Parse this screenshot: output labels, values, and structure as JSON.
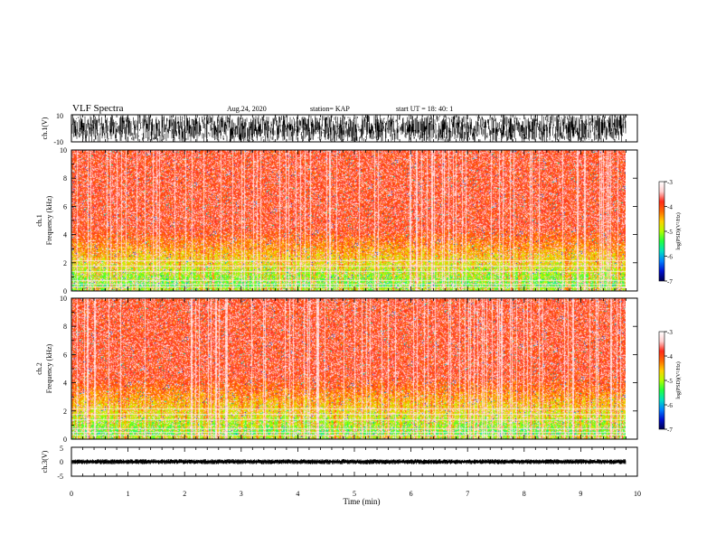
{
  "header": {
    "title": "VLF Spectra",
    "date": "Aug.24, 2020",
    "station": "station= KAP",
    "start": "start  UT  =   18: 40: 1"
  },
  "colorbar": {
    "label": "log(PSD)(V²/Hz)",
    "ticks": [
      "-3",
      "-4",
      "-5",
      "-6",
      "-7"
    ],
    "colors": [
      "#ffffff",
      "#ffd0d0",
      "#ff2a1a",
      "#ff6a00",
      "#ffd000",
      "#b0ff00",
      "#20ff40",
      "#00e0c0",
      "#0080ff",
      "#0010d0",
      "#000050"
    ]
  },
  "chart_data": [
    {
      "type": "line",
      "name": "ch.1 waveform",
      "ylabel": "ch.1(V)",
      "ylim": [
        -10,
        10
      ],
      "yticks": [
        "10",
        "-10"
      ],
      "xlim": [
        0,
        10
      ],
      "description_values": {
        "amplitude_min": -10,
        "amplitude_max": 10,
        "data_end_min": 9.8
      }
    },
    {
      "type": "heatmap",
      "name": "ch.1 spectrogram",
      "ylabel": "ch.1\nFrequency (kHz)",
      "ylabel_line1": "ch.1",
      "ylabel_line2": "Frequency  (kHz)",
      "ylim": [
        0,
        10
      ],
      "yticks": [
        "0",
        "2",
        "4",
        "6",
        "8",
        "10"
      ],
      "xlim": [
        0,
        10
      ],
      "zlim": [
        -7,
        -3
      ],
      "data_end_min": 9.8
    },
    {
      "type": "heatmap",
      "name": "ch.2 spectrogram",
      "ylabel_line1": "ch.2",
      "ylabel_line2": "Frequency  (kHz)",
      "ylim": [
        0,
        10
      ],
      "yticks": [
        "0",
        "2",
        "4",
        "6",
        "8",
        "10"
      ],
      "xlim": [
        0,
        10
      ],
      "zlim": [
        -7,
        -3
      ],
      "data_end_min": 9.8
    },
    {
      "type": "line",
      "name": "ch.3 waveform",
      "ylabel": "ch.3(V)",
      "ylim": [
        -5,
        5
      ],
      "yticks": [
        "5",
        "0",
        "-5"
      ],
      "xlim": [
        0,
        10
      ],
      "xlabel": "Time  (min)",
      "xticks": [
        "0",
        "1",
        "2",
        "3",
        "4",
        "5",
        "6",
        "7",
        "8",
        "9",
        "10"
      ],
      "level_v": 0,
      "data_end_min": 9.8
    }
  ]
}
